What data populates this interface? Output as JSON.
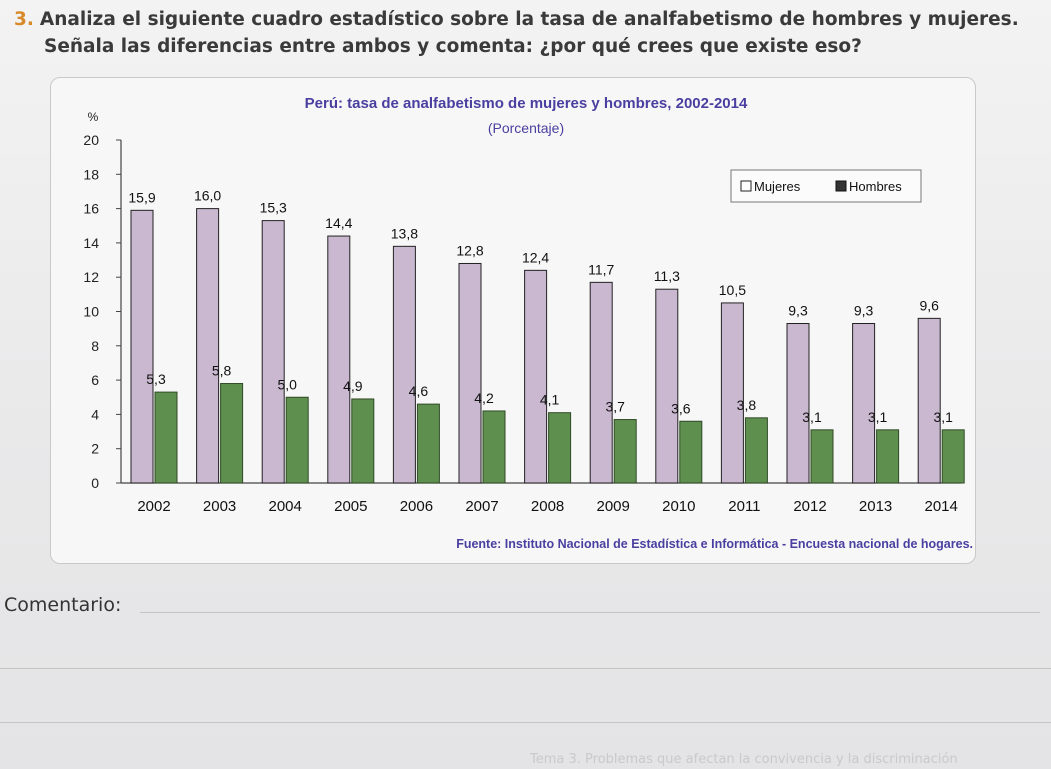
{
  "question": {
    "number": "3.",
    "line1": "Analiza el siguiente cuadro estadístico sobre la tasa de analfabetismo de hombres y mujeres.",
    "line2": "Señala las diferencias entre ambos y comenta: ¿por qué crees que existe eso?"
  },
  "comment_label": "Comentario:",
  "footer_text": "Tema 3. Problemas que afectan la convivencia y la discriminación",
  "colors": {
    "mujeres": "#c9b8cf",
    "hombres": "#5f8f4e",
    "title": "#4a3fa0"
  },
  "chart_data": {
    "type": "bar",
    "title": "Perú: tasa de analfabetismo de mujeres y hombres, 2002-2014",
    "subtitle": "(Porcentaje)",
    "ylabel": "%",
    "xlabel": "",
    "ylim": [
      0,
      20
    ],
    "yticks": [
      "0",
      "2",
      "4",
      "6",
      "8",
      "10",
      "12",
      "14",
      "16",
      "18",
      "20"
    ],
    "categories": [
      "2002",
      "2003",
      "2004",
      "2005",
      "2006",
      "2007",
      "2008",
      "2009",
      "2010",
      "2011",
      "2012",
      "2013",
      "2014"
    ],
    "series": [
      {
        "name": "Mujeres",
        "values": [
          15.9,
          16.0,
          15.3,
          14.4,
          13.8,
          12.8,
          12.4,
          11.7,
          11.3,
          10.5,
          9.3,
          9.3,
          9.6
        ],
        "labels": [
          "15,9",
          "16,0",
          "15,3",
          "14,4",
          "13,8",
          "12,8",
          "12,4",
          "11,7",
          "11,3",
          "10,5",
          "9,3",
          "9,3",
          "9,6"
        ]
      },
      {
        "name": "Hombres",
        "values": [
          5.3,
          5.8,
          5.0,
          4.9,
          4.6,
          4.2,
          4.1,
          3.7,
          3.6,
          3.8,
          3.1,
          3.1,
          3.1
        ],
        "labels": [
          "5,3",
          "5,8",
          "5,0",
          "4,9",
          "4,6",
          "4,2",
          "4,1",
          "3,7",
          "3,6",
          "3,8",
          "3,1",
          "3,1",
          "3,1"
        ]
      }
    ],
    "legend_position": "top-right",
    "grid": false,
    "source": "Fuente: Instituto Nacional de Estadística e Informática - Encuesta nacional de hogares."
  }
}
